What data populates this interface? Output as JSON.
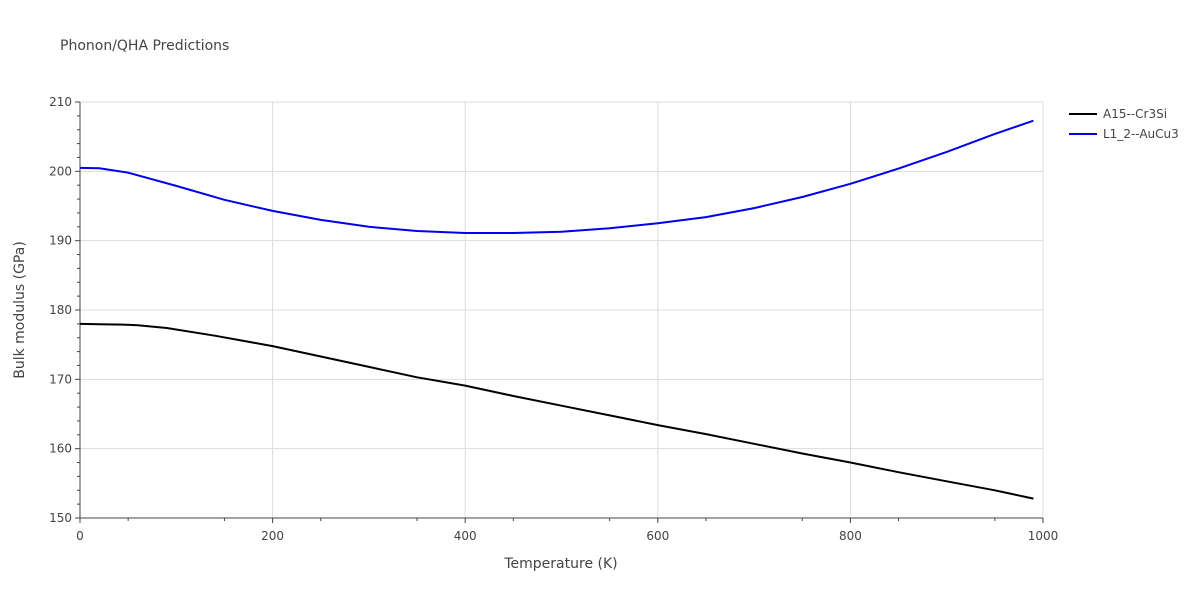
{
  "chart_data": {
    "type": "line",
    "title": "Phonon/QHA Predictions",
    "xlabel": "Temperature (K)",
    "ylabel": "Bulk modulus (GPa)",
    "xlim": [
      0,
      1000
    ],
    "ylim": [
      150,
      210
    ],
    "xticks": [
      0,
      200,
      400,
      600,
      800,
      1000
    ],
    "yticks": [
      150,
      160,
      170,
      180,
      190,
      200,
      210
    ],
    "xtick_labels": [
      "0",
      "200",
      "400",
      "600",
      "800",
      "1000"
    ],
    "ytick_labels": [
      "150",
      "160",
      "170",
      "180",
      "190",
      "200",
      "210"
    ],
    "grid": true,
    "legend_position": "top-right",
    "series": [
      {
        "name": "A15--Cr3Si",
        "color": "#000000",
        "x": [
          0,
          20,
          45,
          60,
          90,
          140,
          200,
          250,
          300,
          350,
          400,
          450,
          500,
          550,
          600,
          650,
          700,
          750,
          800,
          850,
          900,
          950,
          990
        ],
        "y": [
          178.0,
          177.95,
          177.9,
          177.8,
          177.4,
          176.3,
          174.8,
          173.3,
          171.8,
          170.3,
          169.1,
          167.6,
          166.2,
          164.8,
          163.4,
          162.1,
          160.7,
          159.3,
          158.0,
          156.6,
          155.3,
          154.0,
          152.8
        ]
      },
      {
        "name": "L1_2--AuCu3",
        "color": "#0000ee",
        "x": [
          0,
          20,
          50,
          100,
          150,
          200,
          250,
          300,
          350,
          400,
          450,
          500,
          550,
          600,
          650,
          700,
          750,
          800,
          850,
          900,
          950,
          990
        ],
        "y": [
          200.5,
          200.45,
          199.8,
          197.9,
          195.9,
          194.3,
          193.0,
          192.0,
          191.4,
          191.1,
          191.1,
          191.3,
          191.8,
          192.5,
          193.4,
          194.7,
          196.3,
          198.2,
          200.4,
          202.8,
          205.4,
          207.3
        ]
      }
    ]
  }
}
